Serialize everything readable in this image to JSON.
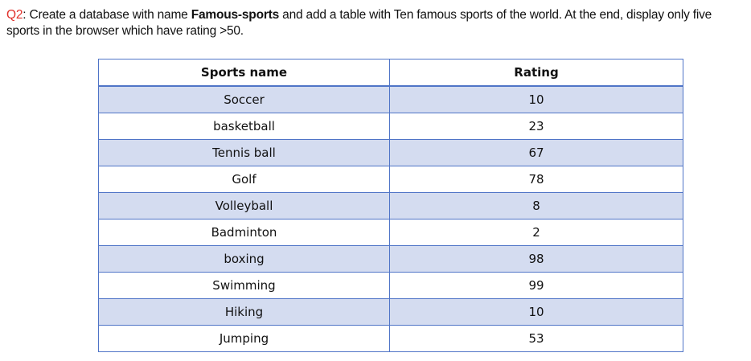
{
  "question": {
    "label": "Q2",
    "text_before": ": Create a database with name ",
    "db_name": "Famous-sports",
    "text_after": " and add a table with Ten famous sports of the world. At the end, display only five sports in the browser which have rating >50.",
    "label_color": "#e0302a"
  },
  "table": {
    "headers": {
      "name": "Sports name",
      "rating": "Rating"
    },
    "rows": [
      {
        "name": "Soccer",
        "rating": "10"
      },
      {
        "name": "basketball",
        "rating": "23"
      },
      {
        "name": "Tennis ball",
        "rating": "67"
      },
      {
        "name": "Golf",
        "rating": "78"
      },
      {
        "name": "Volleyball",
        "rating": "8"
      },
      {
        "name": "Badminton",
        "rating": "2"
      },
      {
        "name": "boxing",
        "rating": "98"
      },
      {
        "name": "Swimming",
        "rating": "99"
      },
      {
        "name": "Hiking",
        "rating": "10"
      },
      {
        "name": "Jumping",
        "rating": "53"
      }
    ],
    "border_color": "#4f74c7",
    "band_color": "#d4dcf0"
  }
}
